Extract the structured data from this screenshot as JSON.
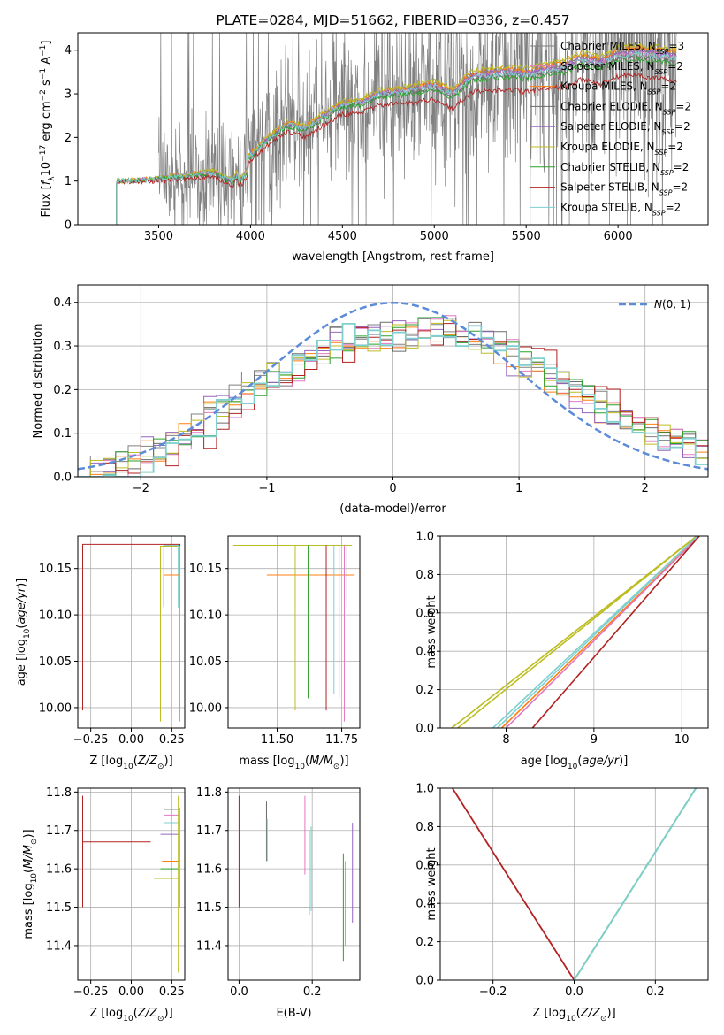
{
  "colors": {
    "series": [
      "#808080",
      "#e377c2",
      "#ff7f0e",
      "#6b6b6b",
      "#9467bd",
      "#bcbd22",
      "#2ca02c",
      "#b22222",
      "#7fcfcf"
    ],
    "gaussian": "#5b8bd9"
  },
  "chart_data": [
    {
      "id": "spectrum",
      "type": "line",
      "title": "PLATE=0284, MJD=51662, FIBERID=0336, z=0.457",
      "xlabel": "wavelength [Angstrom, rest frame]",
      "ylabel": "Flux [f_λ 10^-17 erg cm^-2 s^-1 A^-1]",
      "xlim": [
        3060,
        6490
      ],
      "ylim": [
        0,
        4.4
      ],
      "xticks": [
        3500,
        4000,
        4500,
        5000,
        5500,
        6000
      ],
      "yticks": [
        0,
        1,
        2,
        3,
        4
      ],
      "grid": false,
      "legend_placement": "upper-right",
      "legend": [
        {
          "label": "Chabrier MILES, N_SSP=3",
          "base": "Chabrier MILES, N",
          "sub": "SSP",
          "tail": "=3"
        },
        {
          "label": "Salpeter MILES, N_SSP=2",
          "base": "Salpeter MILES, N",
          "sub": "SSP",
          "tail": "=2"
        },
        {
          "label": "Kroupa MILES, N_SSP=2",
          "base": "Kroupa MILES, N",
          "sub": "SSP",
          "tail": "=2"
        },
        {
          "label": "Chabrier ELODIE, N_SSP=2",
          "base": "Chabrier ELODIE, N",
          "sub": "SSP",
          "tail": "=2"
        },
        {
          "label": "Salpeter ELODIE, N_SSP=2",
          "base": "Salpeter ELODIE, N",
          "sub": "SSP",
          "tail": "=2"
        },
        {
          "label": "Kroupa ELODIE, N_SSP=2",
          "base": "Kroupa ELODIE, N",
          "sub": "SSP",
          "tail": "=2"
        },
        {
          "label": "Chabrier STELIB, N_SSP=2",
          "base": "Chabrier STELIB, N",
          "sub": "SSP",
          "tail": "=2"
        },
        {
          "label": "Salpeter STELIB, N_SSP=2",
          "base": "Salpeter STELIB, N",
          "sub": "SSP",
          "tail": "=2"
        },
        {
          "label": "Kroupa STELIB, N_SSP=2",
          "base": "Kroupa STELIB, N",
          "sub": "SSP",
          "tail": "=2"
        }
      ],
      "model_continuum": {
        "x": [
          3270,
          3300,
          3400,
          3500,
          3600,
          3700,
          3800,
          3900,
          4000,
          4100,
          4200,
          4300,
          4400,
          4500,
          4600,
          4700,
          4800,
          4900,
          5000,
          5100,
          5200,
          5300,
          5400,
          5500,
          5600,
          5700,
          5800,
          5900,
          6000,
          6100,
          6200,
          6300
        ],
        "y": [
          1.0,
          1.0,
          1.02,
          1.05,
          1.1,
          1.15,
          1.2,
          1.0,
          1.6,
          2.0,
          2.3,
          2.2,
          2.5,
          2.75,
          2.8,
          3.0,
          3.05,
          3.1,
          3.2,
          3.0,
          3.4,
          3.45,
          3.5,
          3.45,
          3.55,
          3.6,
          3.8,
          3.7,
          3.9,
          3.95,
          3.9,
          3.85
        ]
      },
      "data_range": {
        "x": [
          3500,
          6320
        ],
        "y": [
          0,
          4.4
        ]
      }
    },
    {
      "id": "residual-histogram",
      "type": "step",
      "xlabel": "(data-model)/error",
      "ylabel": "Normed distribution",
      "xlim": [
        -2.5,
        2.5
      ],
      "ylim": [
        0,
        0.44
      ],
      "xticks": [
        -2,
        -1,
        0,
        1,
        2
      ],
      "yticks": [
        0.0,
        0.1,
        0.2,
        0.3,
        0.4
      ],
      "grid": true,
      "legend_placement": "upper-right",
      "gaussian": {
        "label": "N(0,1)",
        "mu": 0,
        "sigma": 1
      },
      "histogram_shape": {
        "bin_width": 0.1,
        "x": [
          -2.4,
          -2.0,
          -1.6,
          -1.2,
          -0.8,
          -0.4,
          0.0,
          0.4,
          0.8,
          1.2,
          1.6,
          2.0,
          2.4
        ],
        "y": [
          0.01,
          0.04,
          0.1,
          0.19,
          0.25,
          0.32,
          0.32,
          0.34,
          0.31,
          0.23,
          0.17,
          0.11,
          0.06
        ]
      }
    },
    {
      "id": "age-vs-Z",
      "type": "step",
      "xlabel": "Z [log10(Z/Z⊙)]",
      "ylabel": "age [log10(age/yr)]",
      "xlim": [
        -0.33,
        0.33
      ],
      "ylim": [
        9.978,
        10.185
      ],
      "xticks": [
        -0.25,
        0.0,
        0.25
      ],
      "yticks": [
        10.0,
        10.05,
        10.1,
        10.15
      ],
      "grid": true,
      "series": [
        {
          "x0": -0.3,
          "x1": 0.3,
          "y0": 9.997,
          "y1": 10.176,
          "color_index": 7
        },
        {
          "x0": 0.2,
          "x1": 0.3,
          "y0": 10.11,
          "y1": 10.143,
          "color_index": 2
        },
        {
          "x0": 0.18,
          "x1": 0.3,
          "y0": 9.985,
          "y1": 10.174,
          "color_index": 5
        },
        {
          "x0": 0.2,
          "x1": 0.29,
          "y0": 10.108,
          "y1": 10.175,
          "color_index": 8
        }
      ]
    },
    {
      "id": "age-vs-mass",
      "type": "step",
      "xlabel": "mass [log10(M/M⊙)]",
      "ylabel": "",
      "xlim": [
        11.31,
        11.82
      ],
      "ylim": [
        9.978,
        10.185
      ],
      "xticks": [
        11.5,
        11.75
      ],
      "yticks": [
        10.0,
        10.05,
        10.1,
        10.15
      ],
      "grid": true,
      "series": [
        {
          "x": 11.57,
          "y0": 9.997,
          "color_index": 5
        },
        {
          "x": 11.62,
          "y0": 10.01,
          "color_index": 6
        },
        {
          "x": 11.69,
          "y0": 9.997,
          "color_index": 7
        },
        {
          "x": 11.72,
          "y0": 10.015,
          "color_index": 8
        },
        {
          "x": 11.74,
          "y0": 10.01,
          "color_index": 2
        },
        {
          "x": 11.76,
          "y0": 9.985,
          "color_index": 1
        },
        {
          "x": 11.77,
          "y0": 10.108,
          "color_index": 3
        }
      ]
    },
    {
      "id": "cumulative-age",
      "type": "line",
      "xlabel": "age [log10(age/yr)]",
      "ylabel": "mass weight",
      "xlim": [
        7.25,
        10.3
      ],
      "ylim": [
        0,
        1.0
      ],
      "xticks": [
        8,
        9,
        10
      ],
      "yticks": [
        0.0,
        0.2,
        0.4,
        0.6,
        0.8,
        1.0
      ],
      "grid": true,
      "series": [
        {
          "x": [
            7.38,
            10.17
          ],
          "y": [
            0,
            1
          ],
          "color_index": 5
        },
        {
          "x": [
            7.45,
            10.17
          ],
          "y": [
            0,
            1
          ],
          "color_index": 5
        },
        {
          "x": [
            7.85,
            10.18
          ],
          "y": [
            0,
            1
          ],
          "color_index": 8
        },
        {
          "x": [
            7.9,
            10.18
          ],
          "y": [
            0,
            1
          ],
          "color_index": 8
        },
        {
          "x": [
            7.95,
            10.2
          ],
          "y": [
            0,
            1
          ],
          "color_index": 2
        },
        {
          "x": [
            8.0,
            10.2
          ],
          "y": [
            0,
            1
          ],
          "color_index": 1
        },
        {
          "x": [
            8.3,
            10.2
          ],
          "y": [
            0,
            1
          ],
          "color_index": 7
        }
      ]
    },
    {
      "id": "mass-vs-Z",
      "type": "step",
      "xlabel": "Z [log10(Z/Z⊙)]",
      "ylabel": "mass [log10(M/M⊙)]",
      "xlim": [
        -0.33,
        0.33
      ],
      "ylim": [
        11.31,
        11.81
      ],
      "xticks": [
        -0.25,
        0.0,
        0.25
      ],
      "yticks": [
        11.4,
        11.5,
        11.6,
        11.7,
        11.8
      ],
      "grid": true,
      "series": [
        {
          "x0": -0.3,
          "x1": 0.3,
          "y0": 11.5,
          "y1": 11.79,
          "y_step": 11.67,
          "color_index": 7
        },
        {
          "x0": 0.14,
          "x1": 0.3,
          "y0": 11.33,
          "y1": 11.575,
          "y_step": 11.575,
          "color_index": 5
        },
        {
          "x0": 0.18,
          "x1": 0.3,
          "y0": 11.6,
          "y1": 11.6,
          "y_step": 11.6,
          "color_index": 6
        },
        {
          "x0": 0.19,
          "x1": 0.3,
          "y0": 11.62,
          "y1": 11.62,
          "y_step": 11.62,
          "color_index": 2
        },
        {
          "x0": 0.18,
          "x1": 0.3,
          "y0": 11.69,
          "y1": 11.69,
          "y_step": 11.69,
          "color_index": 4
        },
        {
          "x0": 0.2,
          "x1": 0.3,
          "y0": 11.72,
          "y1": 11.72,
          "y_step": 11.72,
          "color_index": 8
        },
        {
          "x0": 0.2,
          "x1": 0.3,
          "y0": 11.74,
          "y1": 11.74,
          "y_step": 11.74,
          "color_index": 1
        },
        {
          "x0": 0.2,
          "x1": 0.3,
          "y0": 11.755,
          "y1": 11.755,
          "y_step": 11.755,
          "color_index": 3
        }
      ]
    },
    {
      "id": "mass-vs-ebv",
      "type": "scatter",
      "xlabel": "E(B-V)",
      "ylabel": "",
      "xlim": [
        -0.03,
        0.33
      ],
      "ylim": [
        11.31,
        11.81
      ],
      "xticks": [
        0.0,
        0.2
      ],
      "yticks": [
        11.4,
        11.5,
        11.6,
        11.7,
        11.8
      ],
      "grid": true,
      "series": [
        {
          "x": 0.0,
          "y0": 11.5,
          "y1": 11.79,
          "color_index": 7
        },
        {
          "x": 0.075,
          "y0": 11.62,
          "y1": 11.775,
          "color_index": 3
        },
        {
          "x": 0.077,
          "y0": 11.62,
          "y1": 11.73,
          "color_index": 8
        },
        {
          "x": 0.18,
          "y0": 11.585,
          "y1": 11.79,
          "color_index": 1
        },
        {
          "x": 0.192,
          "y0": 11.48,
          "y1": 11.7,
          "color_index": 2
        },
        {
          "x": 0.197,
          "y0": 11.49,
          "y1": 11.71,
          "color_index": 8
        },
        {
          "x": 0.285,
          "y0": 11.36,
          "y1": 11.64,
          "color_index": 6
        },
        {
          "x": 0.29,
          "y0": 11.4,
          "y1": 11.62,
          "color_index": 5
        },
        {
          "x": 0.31,
          "y0": 11.46,
          "y1": 11.72,
          "color_index": 4
        }
      ]
    },
    {
      "id": "cumulative-Z",
      "type": "line",
      "xlabel": "Z [log10(Z/Z⊙)]",
      "ylabel": "mass weight",
      "xlim": [
        -0.33,
        0.33
      ],
      "ylim": [
        0,
        1.0
      ],
      "xticks": [
        -0.2,
        0.0,
        0.2
      ],
      "yticks": [
        0.0,
        0.2,
        0.4,
        0.6,
        0.8,
        1.0
      ],
      "grid": true,
      "series": [
        {
          "x": [
            -0.3,
            0.0
          ],
          "y": [
            1.0,
            0.0
          ],
          "color_index": 7
        },
        {
          "x": [
            0.0,
            0.3
          ],
          "y": [
            0.0,
            1.0
          ],
          "color_index": 6
        },
        {
          "x": [
            0.0,
            0.3
          ],
          "y": [
            0.0,
            1.0
          ],
          "color_index": 8
        }
      ]
    }
  ]
}
